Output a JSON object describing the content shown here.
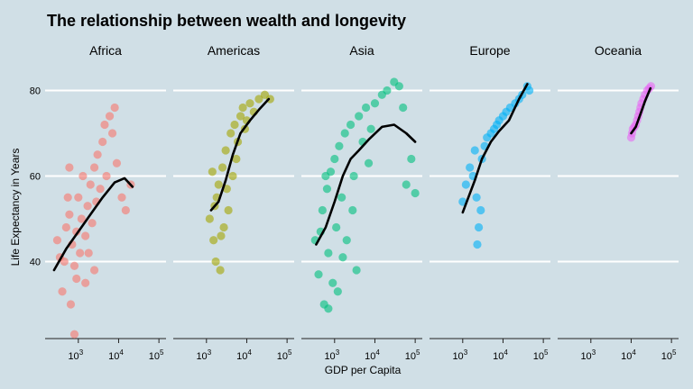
{
  "chart_data": {
    "type": "scatter",
    "title": "The relationship between wealth and longevity",
    "xlabel": "GDP per Capita",
    "ylabel": "Life Expectancy in Years",
    "x_scale": "log10",
    "xlim": [
      150,
      150000
    ],
    "ylim": [
      22,
      86
    ],
    "x_ticks": [
      {
        "value": 1000,
        "base": "10",
        "exp": "3"
      },
      {
        "value": 10000,
        "base": "10",
        "exp": "4"
      },
      {
        "value": 100000,
        "base": "10",
        "exp": "5"
      }
    ],
    "y_ticks": [
      40,
      60,
      80
    ],
    "grid": "horizontal",
    "legend": "none",
    "series": [
      {
        "name": "Africa",
        "color": "#F8766D",
        "trend": [
          [
            250,
            38
          ],
          [
            500,
            43
          ],
          [
            1000,
            47
          ],
          [
            2000,
            51
          ],
          [
            4000,
            55
          ],
          [
            8000,
            58.5
          ],
          [
            14000,
            59.5
          ],
          [
            22000,
            57.5
          ]
        ],
        "points": [
          [
            300,
            45
          ],
          [
            450,
            40
          ],
          [
            500,
            48
          ],
          [
            600,
            51
          ],
          [
            700,
            44
          ],
          [
            800,
            39
          ],
          [
            900,
            47
          ],
          [
            1000,
            55
          ],
          [
            1100,
            42
          ],
          [
            1200,
            50
          ],
          [
            1300,
            60
          ],
          [
            1500,
            46
          ],
          [
            1700,
            53
          ],
          [
            2000,
            58
          ],
          [
            2200,
            49
          ],
          [
            2500,
            62
          ],
          [
            2800,
            54
          ],
          [
            3000,
            65
          ],
          [
            3500,
            57
          ],
          [
            4000,
            68
          ],
          [
            4500,
            72
          ],
          [
            5000,
            60
          ],
          [
            6000,
            74
          ],
          [
            7000,
            70
          ],
          [
            8000,
            76
          ],
          [
            9000,
            63
          ],
          [
            12000,
            55
          ],
          [
            15000,
            52
          ],
          [
            20000,
            58
          ],
          [
            400,
            33
          ],
          [
            650,
            30
          ],
          [
            800,
            23
          ],
          [
            1500,
            35
          ],
          [
            2500,
            38
          ],
          [
            600,
            62
          ],
          [
            900,
            36
          ],
          [
            1800,
            42
          ],
          [
            350,
            41
          ],
          [
            550,
            55
          ]
        ]
      },
      {
        "name": "Americas",
        "color": "#A3A500",
        "trend": [
          [
            1300,
            52
          ],
          [
            2000,
            54
          ],
          [
            3000,
            59
          ],
          [
            4500,
            65
          ],
          [
            7000,
            70
          ],
          [
            12000,
            73
          ],
          [
            20000,
            75.5
          ],
          [
            35000,
            78
          ]
        ],
        "points": [
          [
            1200,
            50
          ],
          [
            1500,
            45
          ],
          [
            1700,
            40
          ],
          [
            1800,
            55
          ],
          [
            2000,
            58
          ],
          [
            2200,
            38
          ],
          [
            2500,
            62
          ],
          [
            2700,
            48
          ],
          [
            3000,
            66
          ],
          [
            3500,
            52
          ],
          [
            4000,
            70
          ],
          [
            4500,
            60
          ],
          [
            5000,
            72
          ],
          [
            6000,
            68
          ],
          [
            7000,
            74
          ],
          [
            8000,
            76
          ],
          [
            10000,
            73
          ],
          [
            12000,
            77
          ],
          [
            15000,
            75
          ],
          [
            20000,
            78
          ],
          [
            28000,
            79
          ],
          [
            38000,
            78
          ],
          [
            1400,
            61
          ],
          [
            2300,
            46
          ],
          [
            3200,
            57
          ],
          [
            5500,
            64
          ],
          [
            9000,
            71
          ],
          [
            1600,
            53
          ]
        ]
      },
      {
        "name": "Asia",
        "color": "#00BF7D",
        "trend": [
          [
            350,
            44
          ],
          [
            600,
            48
          ],
          [
            1000,
            54
          ],
          [
            1600,
            60
          ],
          [
            2500,
            64
          ],
          [
            4000,
            66
          ],
          [
            7000,
            68.5
          ],
          [
            15000,
            71.5
          ],
          [
            30000,
            72
          ],
          [
            60000,
            70
          ],
          [
            100000,
            68
          ]
        ],
        "points": [
          [
            330,
            45
          ],
          [
            400,
            37
          ],
          [
            500,
            52
          ],
          [
            550,
            30
          ],
          [
            650,
            57
          ],
          [
            700,
            42
          ],
          [
            800,
            61
          ],
          [
            900,
            35
          ],
          [
            1000,
            64
          ],
          [
            1100,
            48
          ],
          [
            1300,
            67
          ],
          [
            1500,
            55
          ],
          [
            1800,
            70
          ],
          [
            2000,
            45
          ],
          [
            2500,
            72
          ],
          [
            3000,
            60
          ],
          [
            4000,
            74
          ],
          [
            5000,
            68
          ],
          [
            6000,
            76
          ],
          [
            8000,
            71
          ],
          [
            10000,
            77
          ],
          [
            15000,
            79
          ],
          [
            20000,
            80
          ],
          [
            30000,
            82
          ],
          [
            40000,
            81
          ],
          [
            50000,
            76
          ],
          [
            80000,
            64
          ],
          [
            100000,
            56
          ],
          [
            60000,
            58
          ],
          [
            3500,
            38
          ],
          [
            1200,
            33
          ],
          [
            700,
            29
          ],
          [
            2800,
            52
          ],
          [
            600,
            60
          ],
          [
            450,
            47
          ],
          [
            7000,
            63
          ],
          [
            1600,
            41
          ]
        ]
      },
      {
        "name": "Europe",
        "color": "#00B0F6",
        "trend": [
          [
            1000,
            51.5
          ],
          [
            2000,
            59
          ],
          [
            3000,
            64
          ],
          [
            5000,
            68
          ],
          [
            8000,
            70.5
          ],
          [
            14000,
            73
          ],
          [
            25000,
            78
          ],
          [
            40000,
            81.5
          ]
        ],
        "points": [
          [
            1000,
            54
          ],
          [
            1200,
            58
          ],
          [
            1500,
            62
          ],
          [
            1800,
            60
          ],
          [
            2000,
            66
          ],
          [
            2300,
            44
          ],
          [
            2500,
            48
          ],
          [
            2800,
            52
          ],
          [
            3000,
            64
          ],
          [
            3500,
            67
          ],
          [
            4000,
            69
          ],
          [
            5000,
            70
          ],
          [
            6000,
            71
          ],
          [
            7000,
            72
          ],
          [
            8000,
            73
          ],
          [
            10000,
            74
          ],
          [
            12000,
            75
          ],
          [
            15000,
            76
          ],
          [
            20000,
            77
          ],
          [
            25000,
            78
          ],
          [
            30000,
            79
          ],
          [
            40000,
            81
          ],
          [
            45000,
            80
          ],
          [
            2200,
            55
          ]
        ]
      },
      {
        "name": "Oceania",
        "color": "#E76BF3",
        "trend": [
          [
            10000,
            70
          ],
          [
            13000,
            71.5
          ],
          [
            17000,
            74.5
          ],
          [
            22000,
            77.5
          ],
          [
            30000,
            80.5
          ]
        ],
        "points": [
          [
            10000,
            69
          ],
          [
            10500,
            70
          ],
          [
            11000,
            71
          ],
          [
            12000,
            71.5
          ],
          [
            13000,
            72
          ],
          [
            14000,
            73
          ],
          [
            15000,
            74
          ],
          [
            16000,
            75
          ],
          [
            17000,
            76
          ],
          [
            18000,
            77
          ],
          [
            20000,
            78
          ],
          [
            22000,
            79
          ],
          [
            25000,
            80
          ],
          [
            28000,
            80.5
          ],
          [
            31000,
            81
          ]
        ]
      }
    ]
  }
}
